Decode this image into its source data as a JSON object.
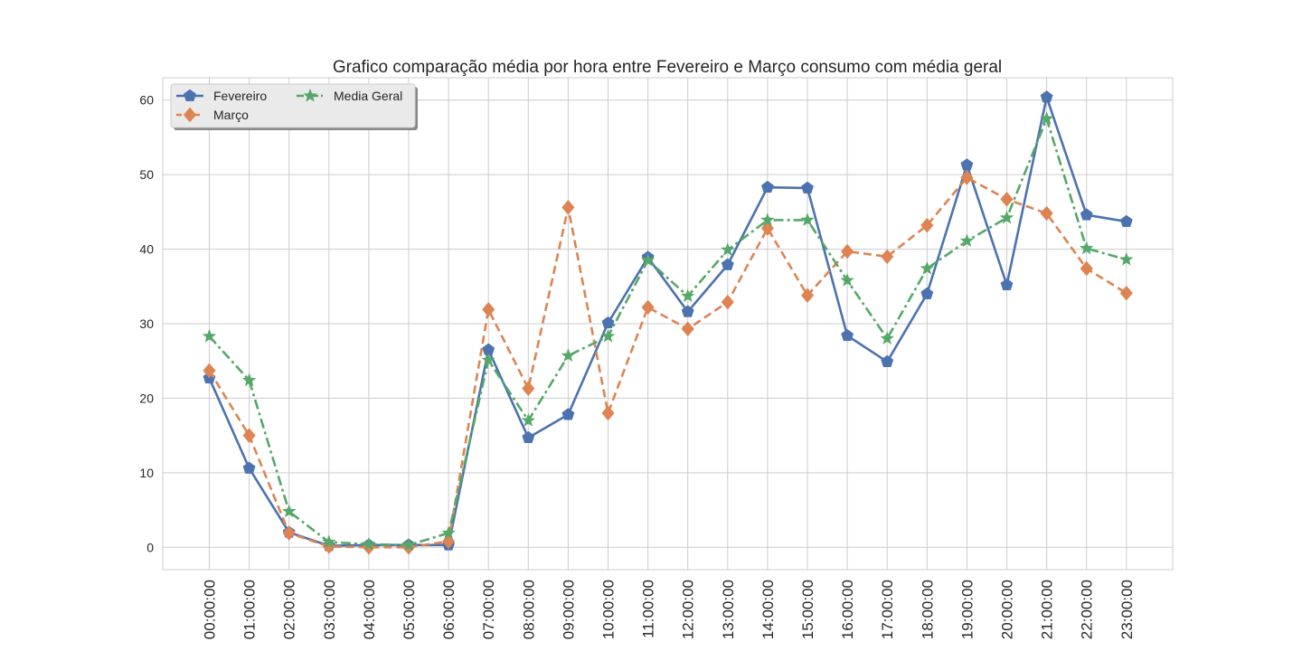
{
  "chart_data": {
    "type": "line",
    "title": "Grafico comparação média por hora entre Fevereiro e Março consumo com média geral",
    "xlabel": "",
    "ylabel": "",
    "categories": [
      "00:00:00",
      "01:00:00",
      "02:00:00",
      "03:00:00",
      "04:00:00",
      "05:00:00",
      "06:00:00",
      "07:00:00",
      "08:00:00",
      "09:00:00",
      "10:00:00",
      "11:00:00",
      "12:00:00",
      "13:00:00",
      "14:00:00",
      "15:00:00",
      "16:00:00",
      "17:00:00",
      "18:00:00",
      "19:00:00",
      "20:00:00",
      "21:00:00",
      "22:00:00",
      "23:00:00"
    ],
    "yticks": [
      0,
      10,
      20,
      30,
      40,
      50,
      60
    ],
    "ylim": [
      -3,
      63
    ],
    "grid": true,
    "legend_position": "top-left",
    "series": [
      {
        "name": "Fevereiro",
        "color": "#4c72b0",
        "marker": "pentagon",
        "linestyle": "solid",
        "values": [
          22.7,
          10.6,
          2.0,
          0.2,
          0.3,
          0.3,
          0.3,
          26.5,
          14.7,
          17.8,
          30.1,
          38.9,
          31.6,
          37.9,
          48.3,
          48.2,
          28.4,
          24.9,
          34.0,
          51.3,
          35.2,
          60.4,
          44.6,
          43.7
        ]
      },
      {
        "name": "Março",
        "color": "#dd8452",
        "marker": "diamond",
        "linestyle": "dashed",
        "values": [
          23.7,
          15.0,
          1.9,
          0.1,
          0.0,
          0.0,
          0.8,
          31.9,
          21.3,
          45.6,
          18.0,
          32.2,
          29.3,
          32.9,
          42.8,
          33.8,
          39.7,
          39.0,
          43.2,
          49.6,
          46.7,
          44.8,
          37.4,
          34.1
        ]
      },
      {
        "name": "Media Geral",
        "color": "#55a868",
        "marker": "star",
        "linestyle": "dashdot",
        "values": [
          28.3,
          22.4,
          4.8,
          0.7,
          0.4,
          0.3,
          1.9,
          25.1,
          17.0,
          25.7,
          28.3,
          38.5,
          33.7,
          39.9,
          43.9,
          43.9,
          35.8,
          28.0,
          37.4,
          41.1,
          44.2,
          57.5,
          40.1,
          38.6
        ]
      }
    ]
  }
}
